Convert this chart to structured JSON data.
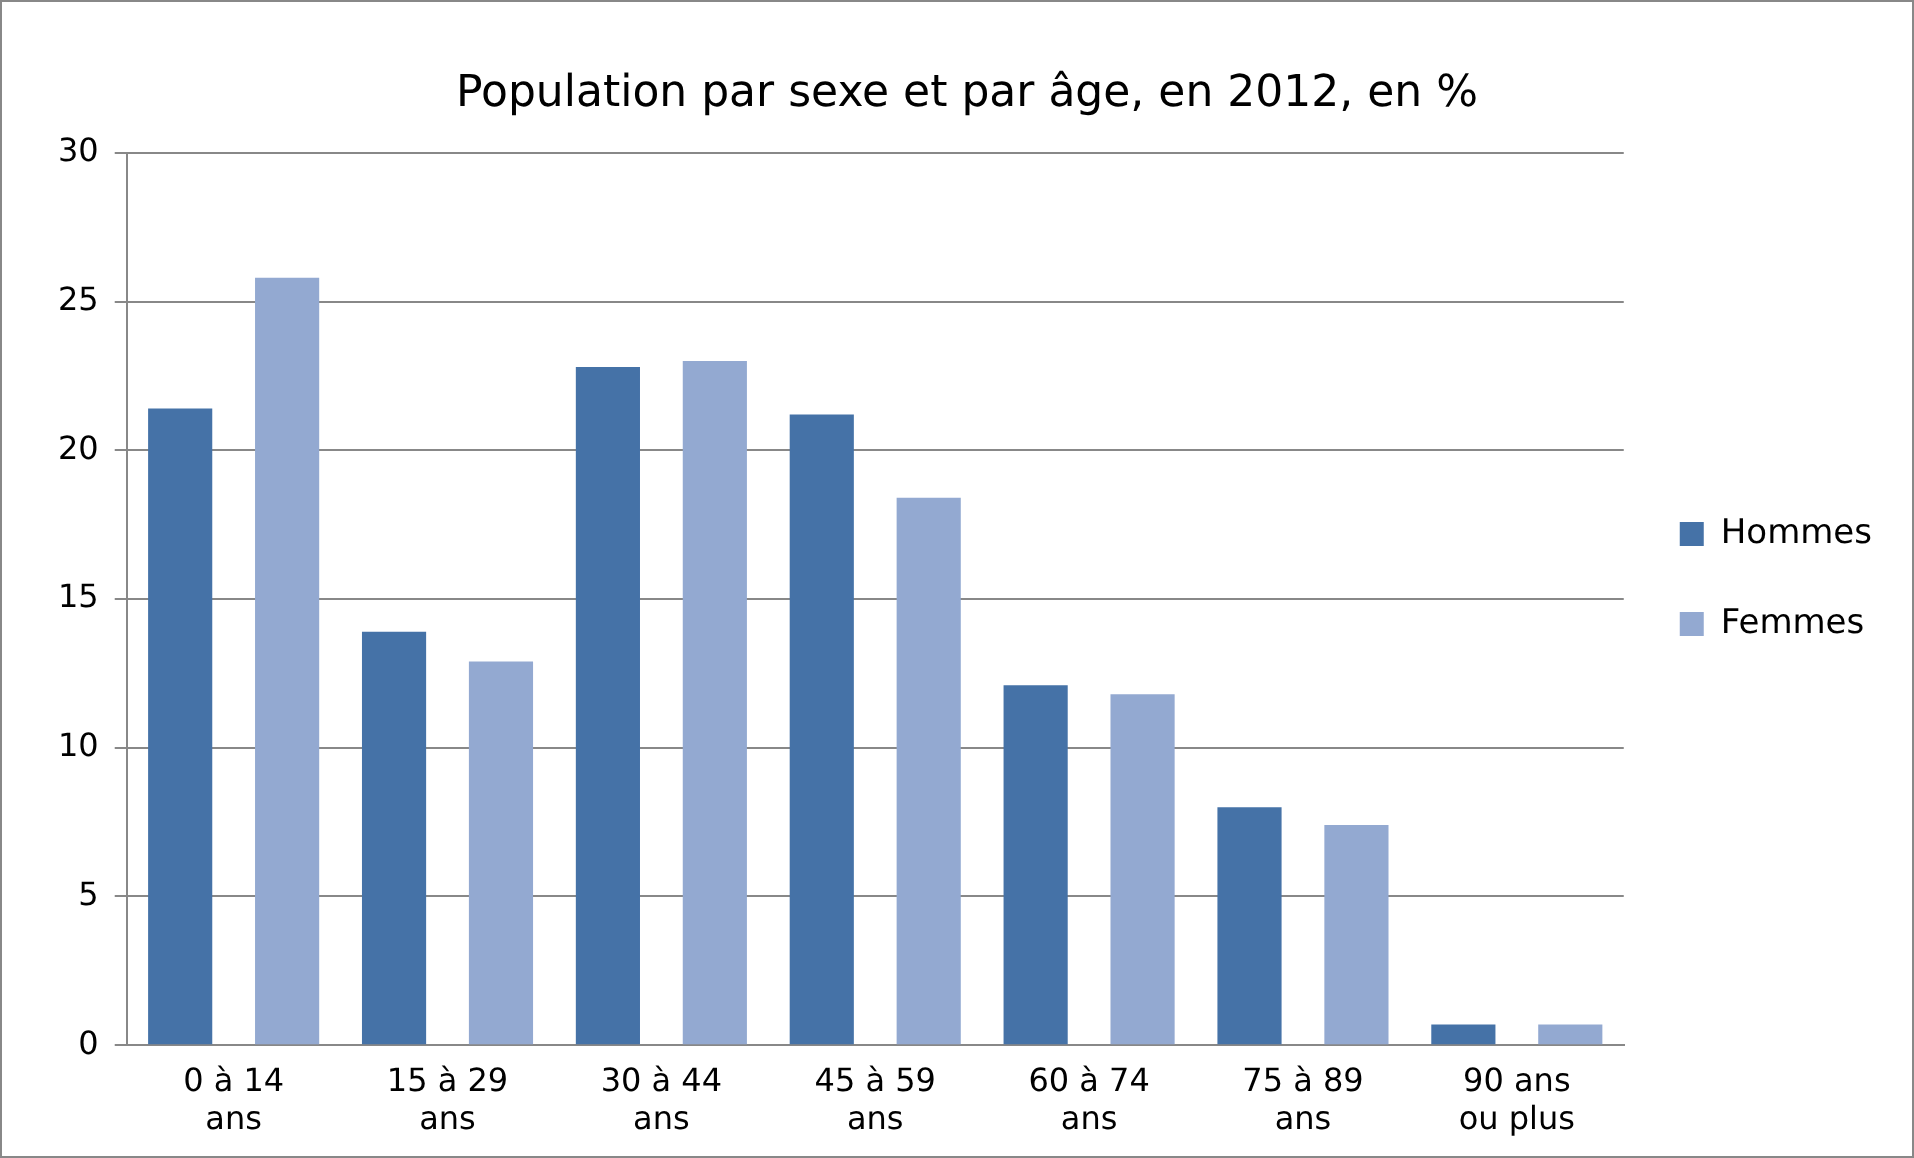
{
  "chart_data": {
    "type": "bar",
    "title": "Population par sexe et par âge, en 2012, en %",
    "categories": [
      "0 à 14 ans",
      "15 à 29 ans",
      "30 à 44 ans",
      "45 à 59 ans",
      "60 à 74 ans",
      "75 à 89 ans",
      "90 ans ou plus"
    ],
    "series": [
      {
        "name": "Hommes",
        "color": "#4572a7",
        "values": [
          21.4,
          13.9,
          22.8,
          21.2,
          12.1,
          8.0,
          0.7
        ]
      },
      {
        "name": "Femmes",
        "color": "#93a9d1",
        "values": [
          25.8,
          12.9,
          23.0,
          18.4,
          11.8,
          7.4,
          0.7
        ]
      }
    ],
    "ylim": [
      0,
      30
    ],
    "yticks": [
      0,
      5,
      10,
      15,
      20,
      25,
      30
    ],
    "grid": "y",
    "legend": "right"
  }
}
